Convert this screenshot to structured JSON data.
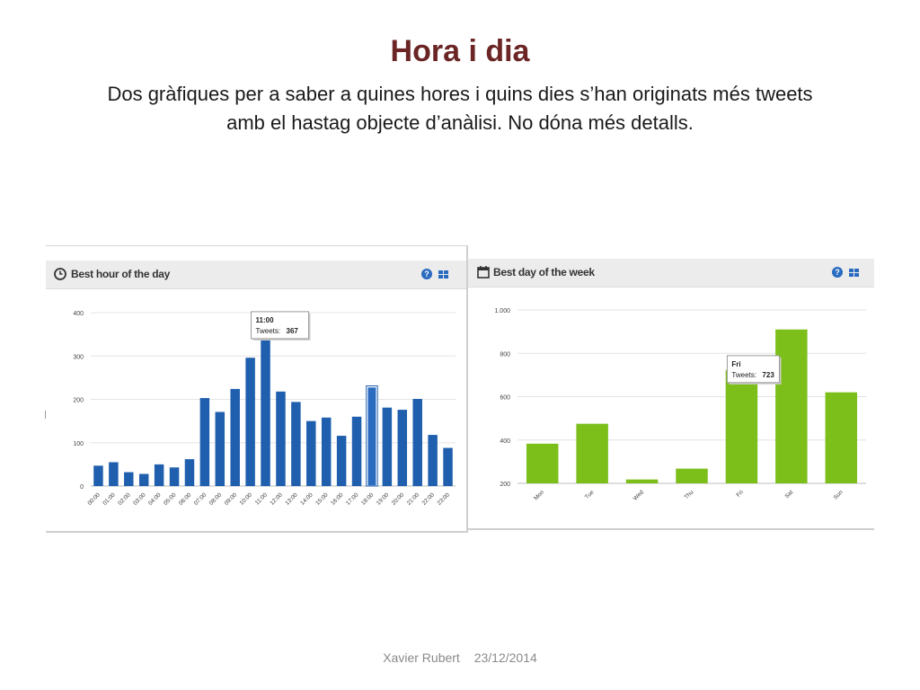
{
  "slide": {
    "title": "Hora i dia",
    "subtitle": "Dos gràfiques per a saber a quines hores i quins dies s’han originats més tweets amb el hastag objecte d’anàlisi. No dóna més detalls.",
    "footer_author": "Xavier Rubert",
    "footer_date": "23/12/2014"
  },
  "panels": {
    "hour": {
      "title": "Best hour of the day",
      "icon": "clock-icon",
      "help": "?"
    },
    "day": {
      "title": "Best day of the week",
      "icon": "calendar-icon",
      "help": "?"
    }
  },
  "colors": {
    "title": "#6b2525",
    "hour_bar": "#1f5fae",
    "day_bar": "#7cbf1b",
    "accent_icon": "#2a6bc0"
  },
  "chart_data": [
    {
      "type": "bar",
      "title": "Best hour of the day",
      "categories": [
        "00:00",
        "01:00",
        "02:00",
        "03:00",
        "04:00",
        "05:00",
        "06:00",
        "07:00",
        "08:00",
        "09:00",
        "10:00",
        "11:00",
        "12:00",
        "13:00",
        "14:00",
        "15:00",
        "16:00",
        "17:00",
        "18:00",
        "19:00",
        "20:00",
        "21:00",
        "22:00",
        "23:00"
      ],
      "values": [
        47,
        55,
        32,
        28,
        50,
        43,
        62,
        203,
        171,
        224,
        296,
        367,
        218,
        194,
        150,
        158,
        116,
        160,
        229,
        181,
        176,
        201,
        118,
        88
      ],
      "ylim": [
        0,
        400
      ],
      "yticks": [
        "0",
        "100",
        "200",
        "300",
        "400"
      ],
      "grid": true,
      "highlighted_index": 18,
      "tooltip": {
        "category": "11:00",
        "label": "Tweets:",
        "value": "367"
      }
    },
    {
      "type": "bar",
      "title": "Best day of the week",
      "categories": [
        "Mon",
        "Tue",
        "Wed",
        "Thu",
        "Fri",
        "Sat",
        "Sun"
      ],
      "values": [
        383,
        475,
        218,
        268,
        723,
        910,
        620
      ],
      "ylim": [
        200,
        1000
      ],
      "yticks": [
        "200",
        "400",
        "600",
        "800",
        "1.000"
      ],
      "grid": true,
      "tooltip": {
        "category": "Fri",
        "label": "Tweets:",
        "value": "723"
      }
    }
  ]
}
